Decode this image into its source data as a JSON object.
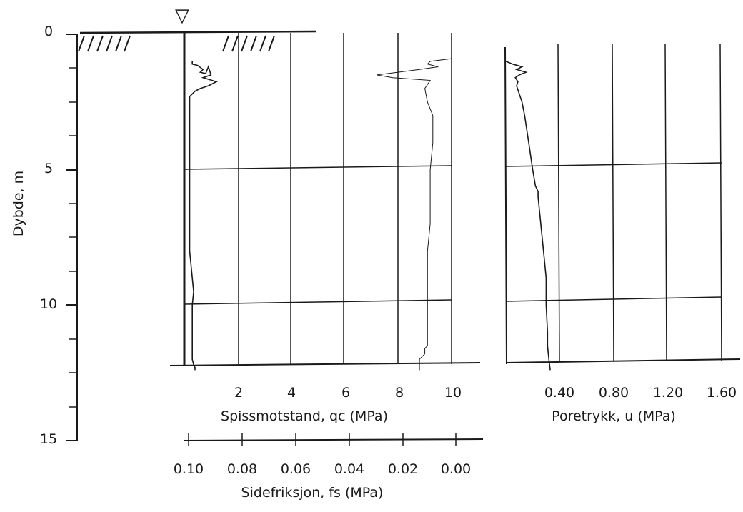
{
  "chart_data": [
    {
      "type": "line",
      "name_role": "depth-axis",
      "ylabel": "Dybde, m",
      "yticks": [
        "0",
        "5",
        "10",
        "15"
      ],
      "ylim": [
        0,
        15
      ],
      "inverted": true,
      "water_table_symbol": "▽"
    },
    {
      "type": "line",
      "xlabel": "Spissmotstand, qc (MPa)",
      "xticks": [
        "2",
        "4",
        "6",
        "8",
        "10"
      ],
      "xlim": [
        0,
        10
      ],
      "secondary_x": {
        "xlabel": "Sidefriksjon, fs (MPa)",
        "xticks": [
          "0.10",
          "0.08",
          "0.06",
          "0.04",
          "0.02",
          "0.00"
        ],
        "xlim": [
          0.1,
          0.0
        ]
      },
      "ylim": [
        0,
        12.4
      ],
      "series": [
        {
          "quantity": "qc",
          "x": [
            0.3,
            0.3,
            0.5,
            0.7,
            0.6,
            0.8,
            0.9,
            1.0,
            0.7,
            1.2,
            0.9,
            0.6,
            0.4,
            0.2,
            0.2,
            0.2,
            0.2,
            0.2,
            0.2,
            0.2,
            0.2,
            0.2,
            0.2,
            0.2,
            0.3,
            0.35,
            0.3,
            0.3,
            0.3,
            0.3,
            0.3,
            0.3,
            0.35,
            0.4,
            0.4
          ],
          "y": [
            1.0,
            1.1,
            1.15,
            1.3,
            1.4,
            1.45,
            1.2,
            1.5,
            1.6,
            1.75,
            1.9,
            2.0,
            2.1,
            2.3,
            3.0,
            4.0,
            5.0,
            5.5,
            5.9,
            6.0,
            6.1,
            6.5,
            7.0,
            8.0,
            9.0,
            9.5,
            10.0,
            10.5,
            11.0,
            11.5,
            11.8,
            12.0,
            12.2,
            12.3,
            12.4
          ]
        },
        {
          "quantity": "fs",
          "x": [
            0.0,
            0.008,
            0.009,
            0.005,
            0.012,
            0.02,
            0.028,
            0.022,
            0.008,
            0.01,
            0.009,
            0.007,
            0.007,
            0.008,
            0.008,
            0.008,
            0.009,
            0.009,
            0.009,
            0.009,
            0.009,
            0.009,
            0.009,
            0.01,
            0.01,
            0.012,
            0.012,
            0.012
          ],
          "y": [
            0.9,
            1.0,
            1.1,
            1.2,
            1.3,
            1.4,
            1.5,
            1.6,
            1.7,
            2.0,
            2.5,
            3.0,
            4.0,
            5.0,
            6.0,
            7.0,
            8.0,
            9.0,
            10.0,
            10.5,
            11.0,
            11.2,
            11.5,
            11.6,
            11.8,
            12.0,
            12.2,
            12.4
          ]
        }
      ]
    },
    {
      "type": "line",
      "xlabel": "Poretrykk, u (MPa)",
      "xticks": [
        "0.40",
        "0.80",
        "1.20",
        "1.60"
      ],
      "xlim": [
        0,
        1.6
      ],
      "ylim": [
        0,
        12.4
      ],
      "series": [
        {
          "quantity": "u",
          "x": [
            0.0,
            0.05,
            0.12,
            0.08,
            0.15,
            0.1,
            0.07,
            0.09,
            0.08,
            0.12,
            0.14,
            0.17,
            0.2,
            0.22,
            0.24,
            0.24,
            0.26,
            0.28,
            0.3,
            0.3,
            0.31,
            0.31,
            0.32,
            0.33
          ],
          "y": [
            1.0,
            1.1,
            1.2,
            1.3,
            1.4,
            1.5,
            1.6,
            1.75,
            1.9,
            2.5,
            3.0,
            4.0,
            5.0,
            5.6,
            5.8,
            6.0,
            7.0,
            8.0,
            9.0,
            10.0,
            11.0,
            11.5,
            12.0,
            12.4
          ]
        }
      ]
    }
  ]
}
